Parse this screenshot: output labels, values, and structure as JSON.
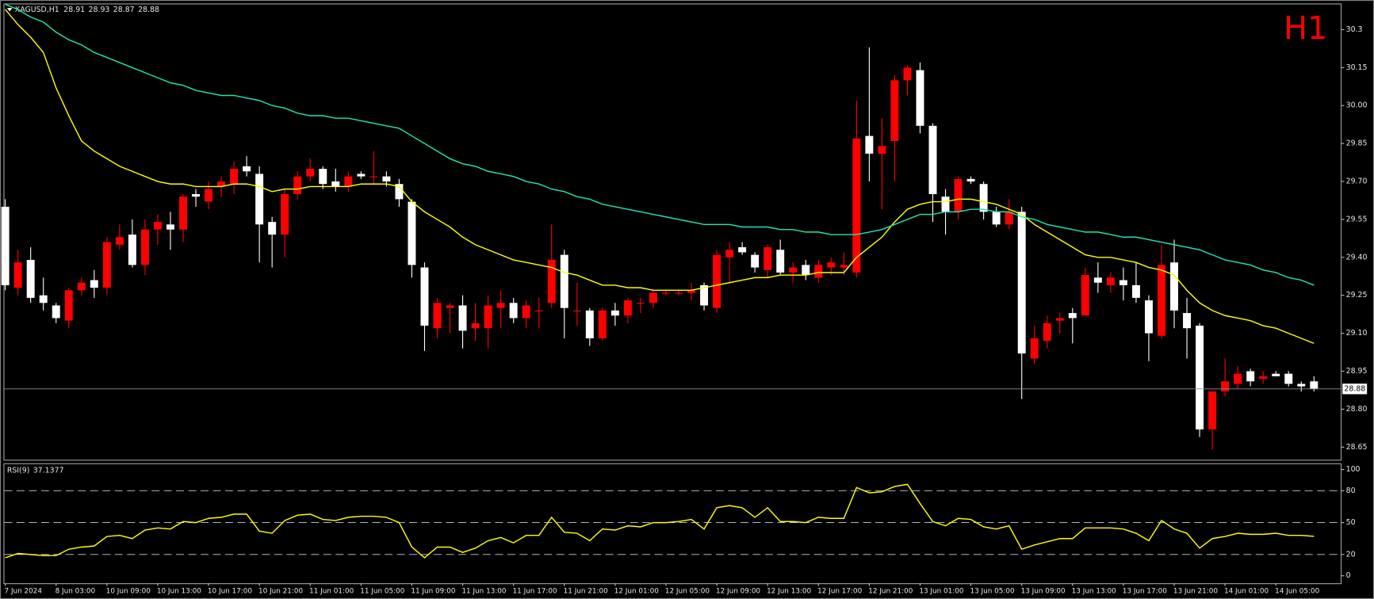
{
  "chart_data": [
    {
      "type": "candlestick",
      "symbol": "XAGUSD,H1",
      "timeframe_label": "H1",
      "categories": [
        "7 Jun 2024",
        null,
        null,
        null,
        "8 Jun 03:00",
        null,
        null,
        null,
        "10 Jun 09:00",
        null,
        null,
        null,
        "10 Jun 13:00",
        null,
        null,
        null,
        "10 Jun 17:00",
        null,
        null,
        null,
        "10 Jun 21:00",
        null,
        null,
        null,
        "11 Jun 01:00",
        null,
        null,
        null,
        "11 Jun 05:00",
        null,
        null,
        null,
        "11 Jun 09:00",
        null,
        null,
        null,
        "11 Jun 13:00",
        null,
        null,
        null,
        "11 Jun 17:00",
        null,
        null,
        null,
        "11 Jun 21:00",
        null,
        null,
        null,
        "12 Jun 01:00",
        null,
        null,
        null,
        "12 Jun 05:00",
        null,
        null,
        null,
        "12 Jun 09:00",
        null,
        null,
        null,
        "12 Jun 13:00",
        null,
        null,
        null,
        "12 Jun 17:00",
        null,
        null,
        null,
        "12 Jun 21:00",
        null,
        null,
        null,
        "13 Jun 01:00",
        null,
        null,
        null,
        "13 Jun 05:00",
        null,
        null,
        null,
        "13 Jun 09:00",
        null,
        null,
        null,
        "13 Jun 13:00",
        null,
        null,
        null,
        "13 Jun 17:00",
        null,
        null,
        null,
        "13 Jun 21:00",
        null,
        null,
        null,
        "14 Jun 01:00",
        null,
        null,
        null,
        "14 Jun 05:00",
        null,
        null,
        null
      ],
      "open": [
        29.6,
        29.28,
        29.39,
        29.25,
        29.21,
        29.15,
        29.27,
        29.31,
        29.28,
        29.45,
        29.49,
        29.37,
        29.51,
        29.53,
        29.51,
        29.65,
        29.62,
        29.68,
        29.69,
        29.76,
        29.73,
        29.54,
        29.49,
        29.65,
        29.72,
        29.75,
        29.7,
        29.68,
        29.73,
        29.72,
        29.72,
        29.69,
        29.62,
        29.36,
        29.12,
        29.2,
        29.21,
        29.12,
        29.12,
        29.2,
        29.22,
        29.16,
        29.19,
        29.22,
        29.41,
        29.19,
        29.19,
        29.08,
        29.19,
        29.17,
        29.22,
        29.22,
        29.26,
        29.26,
        29.26,
        29.29,
        29.2,
        29.4,
        29.44,
        29.41,
        29.35,
        29.43,
        29.34,
        29.37,
        29.32,
        29.36,
        29.36,
        29.34,
        29.88,
        29.81,
        29.86,
        30.1,
        30.14,
        29.92,
        29.64,
        29.58,
        29.71,
        29.69,
        29.58,
        29.53,
        29.58,
        29.0,
        29.07,
        29.15,
        29.18,
        29.17,
        29.32,
        29.29,
        29.31,
        29.29,
        29.23,
        29.09,
        29.38,
        29.18,
        29.13,
        28.72,
        28.87,
        28.9,
        28.95,
        28.92,
        28.94,
        28.94,
        28.9,
        28.91
      ],
      "high": [
        29.63,
        29.43,
        29.44,
        29.32,
        29.22,
        29.28,
        29.32,
        29.35,
        29.48,
        29.53,
        29.55,
        29.55,
        29.57,
        29.58,
        29.65,
        29.67,
        29.7,
        29.72,
        29.78,
        29.8,
        29.76,
        29.56,
        29.67,
        29.74,
        29.79,
        29.76,
        29.75,
        29.74,
        29.74,
        29.82,
        29.74,
        29.71,
        29.63,
        29.38,
        29.24,
        29.22,
        29.25,
        29.22,
        29.25,
        29.27,
        29.24,
        29.23,
        29.24,
        29.53,
        29.43,
        29.3,
        29.2,
        29.2,
        29.22,
        29.24,
        29.24,
        29.27,
        29.27,
        29.27,
        29.3,
        29.3,
        29.43,
        29.46,
        29.46,
        29.42,
        29.45,
        29.47,
        29.38,
        29.39,
        29.39,
        29.4,
        29.42,
        30.02,
        30.23,
        29.95,
        30.12,
        30.16,
        30.17,
        29.93,
        29.67,
        29.72,
        29.72,
        29.7,
        29.6,
        29.63,
        29.6,
        29.13,
        29.17,
        29.18,
        29.2,
        29.36,
        29.38,
        29.34,
        29.36,
        29.38,
        29.25,
        29.45,
        29.47,
        29.24,
        29.14,
        28.87,
        29.0,
        28.97,
        28.96,
        28.95,
        28.95,
        28.95,
        28.91,
        28.93
      ],
      "low": [
        29.27,
        29.25,
        29.22,
        29.19,
        29.14,
        29.12,
        29.25,
        29.24,
        29.25,
        29.43,
        29.36,
        29.33,
        29.45,
        29.43,
        29.46,
        29.6,
        29.59,
        29.64,
        29.65,
        29.72,
        29.38,
        29.36,
        29.4,
        29.63,
        29.7,
        29.67,
        29.66,
        29.66,
        29.71,
        29.69,
        29.68,
        29.6,
        29.32,
        29.03,
        29.08,
        29.1,
        29.04,
        29.07,
        29.04,
        29.12,
        29.14,
        29.12,
        29.12,
        29.2,
        29.08,
        29.13,
        29.05,
        29.07,
        29.13,
        29.14,
        29.18,
        29.2,
        29.25,
        29.25,
        29.23,
        29.19,
        29.18,
        29.3,
        29.41,
        29.34,
        29.32,
        29.33,
        29.3,
        29.31,
        29.3,
        29.33,
        29.33,
        29.32,
        29.7,
        29.59,
        29.7,
        30.04,
        29.89,
        29.54,
        29.49,
        29.55,
        29.69,
        29.55,
        29.52,
        29.51,
        28.84,
        28.98,
        29.04,
        29.1,
        29.06,
        29.17,
        29.26,
        29.26,
        29.23,
        29.22,
        28.99,
        29.08,
        29.12,
        29.0,
        28.69,
        28.64,
        28.85,
        28.88,
        28.89,
        28.9,
        28.93,
        28.89,
        28.87,
        28.87
      ],
      "close": [
        29.29,
        29.38,
        29.24,
        29.22,
        29.16,
        29.27,
        29.3,
        29.28,
        29.46,
        29.48,
        29.37,
        29.51,
        29.54,
        29.51,
        29.64,
        29.64,
        29.67,
        29.7,
        29.75,
        29.74,
        29.53,
        29.49,
        29.65,
        29.72,
        29.75,
        29.69,
        29.68,
        29.72,
        29.72,
        29.72,
        29.7,
        29.63,
        29.37,
        29.13,
        29.22,
        29.21,
        29.11,
        29.14,
        29.21,
        29.22,
        29.16,
        29.21,
        29.19,
        29.39,
        29.2,
        29.19,
        29.08,
        29.19,
        29.17,
        29.23,
        29.22,
        29.26,
        29.26,
        29.26,
        29.27,
        29.21,
        29.41,
        29.43,
        29.42,
        29.36,
        29.44,
        29.34,
        29.36,
        29.33,
        29.37,
        29.38,
        29.37,
        29.87,
        29.81,
        29.84,
        30.1,
        30.15,
        29.92,
        29.65,
        29.58,
        29.71,
        29.7,
        29.58,
        29.53,
        29.58,
        29.02,
        29.08,
        29.14,
        29.16,
        29.16,
        29.33,
        29.3,
        29.32,
        29.29,
        29.24,
        29.1,
        29.37,
        29.19,
        29.12,
        28.72,
        28.87,
        28.91,
        28.94,
        28.91,
        28.93,
        28.93,
        28.9,
        28.89,
        28.88
      ],
      "bull_color": "#ff0000",
      "bear_color": "#ffffff",
      "series": [
        {
          "color": "#ffff00",
          "values": [
            30.38,
            30.32,
            30.27,
            30.21,
            30.07,
            29.96,
            29.86,
            29.82,
            29.79,
            29.76,
            29.74,
            29.72,
            29.7,
            29.69,
            29.69,
            29.68,
            29.68,
            29.68,
            29.69,
            29.69,
            29.68,
            29.66,
            29.67,
            29.67,
            29.68,
            29.68,
            29.68,
            29.68,
            29.69,
            29.69,
            29.69,
            29.68,
            29.62,
            29.58,
            29.55,
            29.52,
            29.48,
            29.45,
            29.43,
            29.41,
            29.39,
            29.38,
            29.37,
            29.36,
            29.34,
            29.33,
            29.31,
            29.29,
            29.29,
            29.28,
            29.28,
            29.27,
            29.27,
            29.27,
            29.27,
            29.28,
            29.29,
            29.3,
            29.31,
            29.32,
            29.32,
            29.33,
            29.33,
            29.33,
            29.34,
            29.34,
            29.34,
            29.4,
            29.44,
            29.48,
            29.54,
            29.59,
            29.61,
            29.62,
            29.62,
            29.63,
            29.63,
            29.62,
            29.61,
            29.59,
            29.57,
            29.53,
            29.5,
            29.47,
            29.44,
            29.41,
            29.4,
            29.4,
            29.39,
            29.38,
            29.36,
            29.35,
            29.33,
            29.27,
            29.22,
            29.19,
            29.17,
            29.16,
            29.15,
            29.13,
            29.12,
            29.1,
            29.08,
            29.06
          ]
        },
        {
          "color": "#1ee6b4",
          "values": [
            30.4,
            30.38,
            30.35,
            30.33,
            30.29,
            30.26,
            30.24,
            30.21,
            30.19,
            30.17,
            30.15,
            30.13,
            30.11,
            30.09,
            30.08,
            30.06,
            30.05,
            30.04,
            30.04,
            30.03,
            30.02,
            30.0,
            29.99,
            29.97,
            29.96,
            29.96,
            29.95,
            29.95,
            29.94,
            29.93,
            29.92,
            29.91,
            29.88,
            29.85,
            29.82,
            29.79,
            29.77,
            29.76,
            29.74,
            29.73,
            29.72,
            29.7,
            29.69,
            29.67,
            29.66,
            29.64,
            29.63,
            29.61,
            29.6,
            29.59,
            29.58,
            29.57,
            29.56,
            29.55,
            29.54,
            29.53,
            29.53,
            29.53,
            29.52,
            29.52,
            29.52,
            29.51,
            29.51,
            29.5,
            29.5,
            29.49,
            29.49,
            29.49,
            29.5,
            29.51,
            29.53,
            29.55,
            29.57,
            29.57,
            29.58,
            29.58,
            29.59,
            29.59,
            29.58,
            29.58,
            29.56,
            29.55,
            29.53,
            29.52,
            29.51,
            29.5,
            29.5,
            29.49,
            29.48,
            29.48,
            29.47,
            29.46,
            29.45,
            29.44,
            29.43,
            29.41,
            29.39,
            29.38,
            29.37,
            29.35,
            29.34,
            29.32,
            29.31,
            29.29
          ]
        }
      ],
      "ylim": [
        28.6,
        30.4
      ],
      "yticks": [
        30.3,
        30.15,
        {
          "value": 30.0,
          "label": "30.00"
        },
        29.85,
        {
          "value": 29.7,
          "label": "29.70"
        },
        29.55,
        {
          "value": 29.4,
          "label": "29.40"
        },
        29.25,
        {
          "value": 29.1,
          "label": "29.10"
        },
        28.95,
        {
          "value": 28.8,
          "label": "28.80"
        },
        28.65
      ]
    },
    {
      "type": "line",
      "label": "RSI(9)",
      "color": "#ffff00",
      "values": [
        17,
        21,
        20,
        19,
        19,
        25,
        27,
        28,
        37,
        38,
        35,
        43,
        45,
        44,
        51,
        50,
        54,
        55,
        58,
        58,
        42,
        40,
        52,
        57,
        58,
        53,
        52,
        55,
        56,
        56,
        55,
        50,
        27,
        17,
        27,
        27,
        22,
        26,
        33,
        36,
        31,
        38,
        38,
        55,
        41,
        40,
        33,
        44,
        43,
        47,
        46,
        50,
        50,
        51,
        53,
        44,
        64,
        66,
        64,
        55,
        64,
        51,
        51,
        50,
        55,
        54,
        54,
        83,
        78,
        79,
        84,
        86,
        68,
        51,
        47,
        54,
        53,
        46,
        44,
        47,
        25,
        29,
        32,
        35,
        35,
        45,
        45,
        45,
        44,
        40,
        33,
        52,
        44,
        40,
        26,
        35,
        37,
        40,
        39,
        39,
        40,
        38,
        38,
        37.1377
      ],
      "ylim": [
        -7,
        105
      ],
      "yticks": [
        0,
        20,
        50,
        80,
        100
      ],
      "levels": [
        20,
        50,
        80
      ]
    }
  ]
}
